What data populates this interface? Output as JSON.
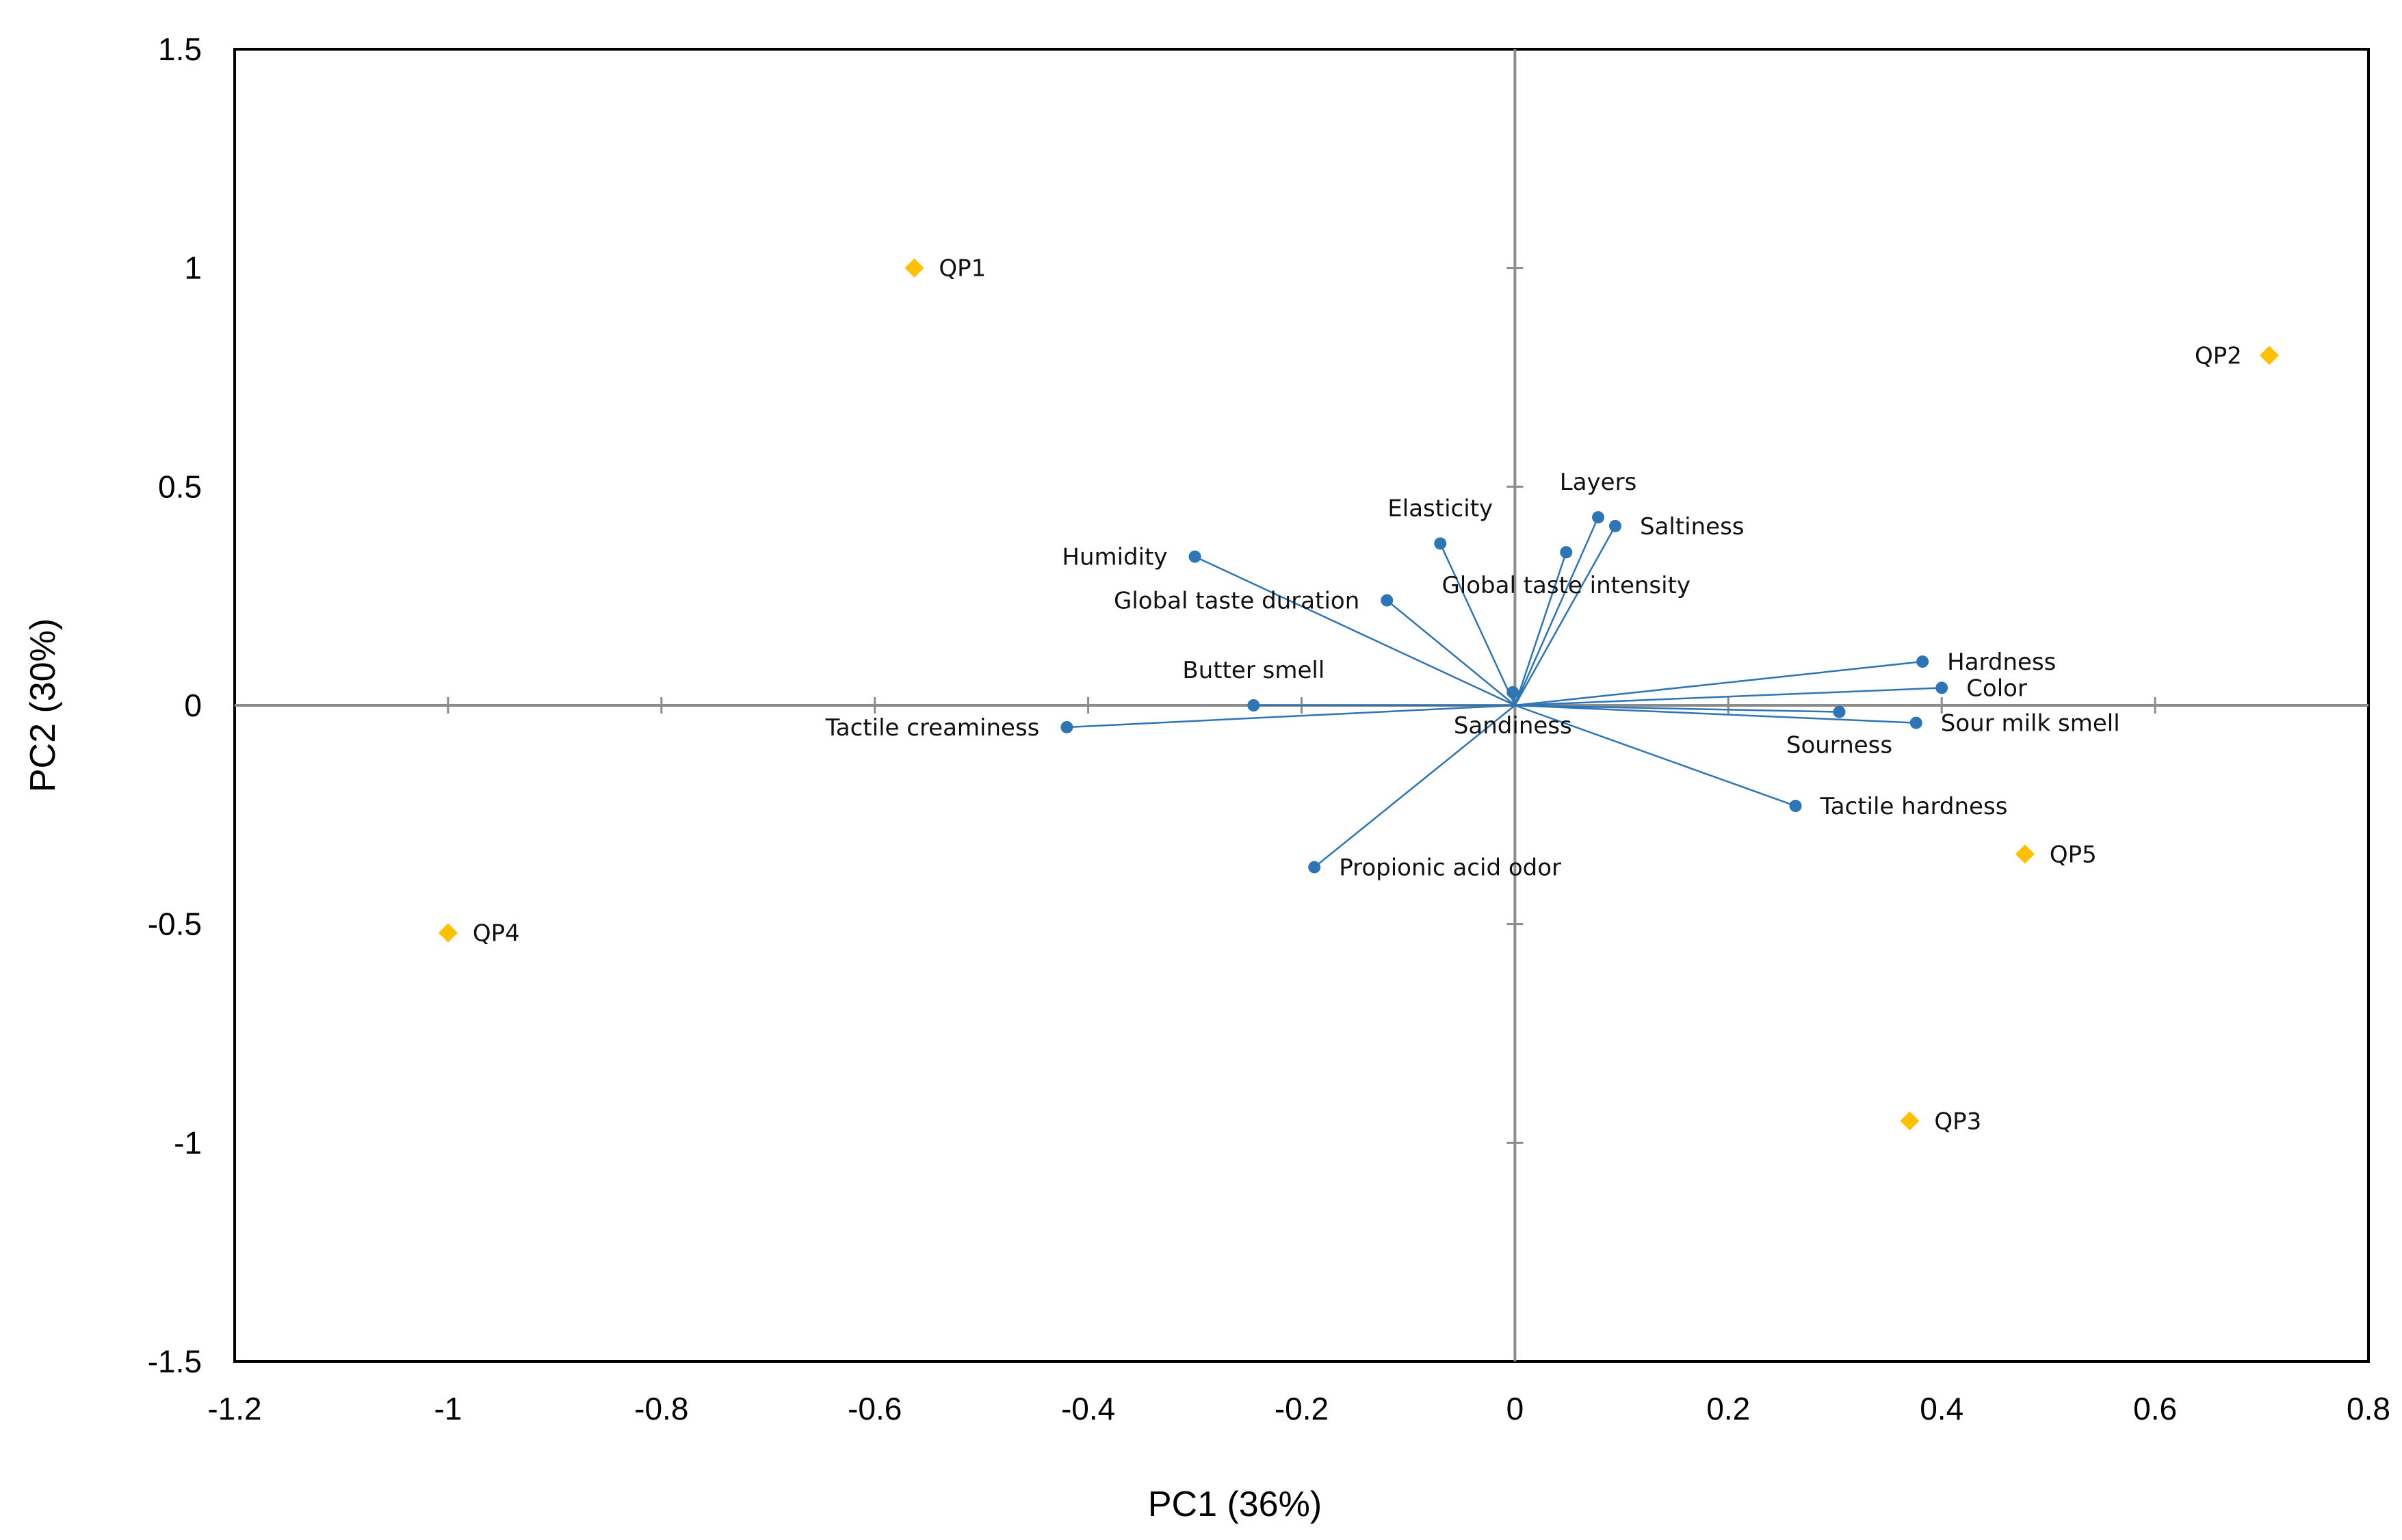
{
  "chart_data": {
    "type": "scatter",
    "subtype": "pca-biplot",
    "title": "",
    "xlabel": "PC1 (36%)",
    "ylabel": "PC2 (30%)",
    "xlim": [
      -1.2,
      0.8
    ],
    "ylim": [
      -1.5,
      1.5
    ],
    "xticks": [
      -1.2,
      -1,
      -0.8,
      -0.6,
      -0.4,
      -0.2,
      0,
      0.2,
      0.4,
      0.6,
      0.8
    ],
    "xtick_labels": [
      "-1.2",
      "-1",
      "-0.8",
      "-0.6",
      "-0.4",
      "-0.2",
      "0",
      "0.2",
      "0.4",
      "0.6",
      "0.8"
    ],
    "yticks": [
      1.5,
      1,
      0.5,
      0,
      -0.5,
      -1,
      -1.5
    ],
    "ytick_labels": [
      "1.5",
      "1",
      "0.5",
      "0",
      "-0.5",
      "-1",
      "-1.5"
    ],
    "grid": false,
    "colors": {
      "variables": "#2E75B6",
      "observations": "#FFC000",
      "axes": "#8c8c8c",
      "frame": "#000000"
    },
    "series": [
      {
        "name": "Variables",
        "marker": "circle",
        "points": [
          {
            "label": "Layers",
            "x": 0.078,
            "y": 0.43,
            "label_pos": "above"
          },
          {
            "label": "Elasticity",
            "x": -0.07,
            "y": 0.37,
            "label_pos": "above"
          },
          {
            "label": "Saltiness",
            "x": 0.094,
            "y": 0.41,
            "label_pos": "right"
          },
          {
            "label": "Humidity",
            "x": -0.3,
            "y": 0.34,
            "label_pos": "left"
          },
          {
            "label": "Global taste duration",
            "x": -0.12,
            "y": 0.24,
            "label_pos": "left"
          },
          {
            "label": "Global taste intensity",
            "x": 0.048,
            "y": 0.35,
            "label_pos": "below"
          },
          {
            "label": "Butter smell",
            "x": -0.245,
            "y": 0.0,
            "label_pos": "above"
          },
          {
            "label": "Tactile creaminess",
            "x": -0.42,
            "y": -0.05,
            "label_pos": "left"
          },
          {
            "label": "Sandiness",
            "x": -0.002,
            "y": 0.03,
            "label_pos": "below"
          },
          {
            "label": "Hardness",
            "x": 0.382,
            "y": 0.1,
            "label_pos": "right"
          },
          {
            "label": "Color",
            "x": 0.4,
            "y": 0.04,
            "label_pos": "right"
          },
          {
            "label": "Sourness",
            "x": 0.304,
            "y": -0.015,
            "label_pos": "below"
          },
          {
            "label": "Sour milk smell",
            "x": 0.376,
            "y": -0.04,
            "label_pos": "right"
          },
          {
            "label": "Tactile hardness",
            "x": 0.263,
            "y": -0.23,
            "label_pos": "right"
          },
          {
            "label": "Propionic acid odor",
            "x": -0.188,
            "y": -0.37,
            "label_pos": "right"
          }
        ]
      },
      {
        "name": "Observations",
        "marker": "diamond",
        "points": [
          {
            "label": "QP1",
            "x": -0.563,
            "y": 1.0,
            "label_pos": "right"
          },
          {
            "label": "QP2",
            "x": 0.707,
            "y": 0.8,
            "label_pos": "left"
          },
          {
            "label": "QP3",
            "x": 0.37,
            "y": -0.95,
            "label_pos": "right"
          },
          {
            "label": "QP4",
            "x": -1.0,
            "y": -0.52,
            "label_pos": "right"
          },
          {
            "label": "QP5",
            "x": 0.478,
            "y": -0.34,
            "label_pos": "right"
          }
        ]
      }
    ]
  }
}
